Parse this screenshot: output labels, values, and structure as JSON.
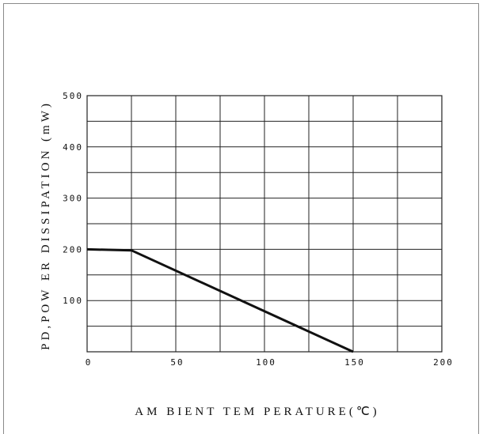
{
  "chart_data": {
    "type": "line",
    "title": "",
    "xlabel": "AM BIENT TEM PERATURE(℃)",
    "ylabel": "PD,POW ER DISSIPATION (mW)",
    "xlim": [
      0,
      200
    ],
    "ylim": [
      0,
      500
    ],
    "x_ticks": [
      0,
      50,
      100,
      150,
      200
    ],
    "y_ticks": [
      100,
      200,
      300,
      400,
      500
    ],
    "x_grid_step": 25,
    "y_grid_step": 50,
    "grid": true,
    "series": [
      {
        "x": [
          0,
          25,
          150
        ],
        "y": [
          200,
          198,
          0
        ]
      }
    ]
  }
}
